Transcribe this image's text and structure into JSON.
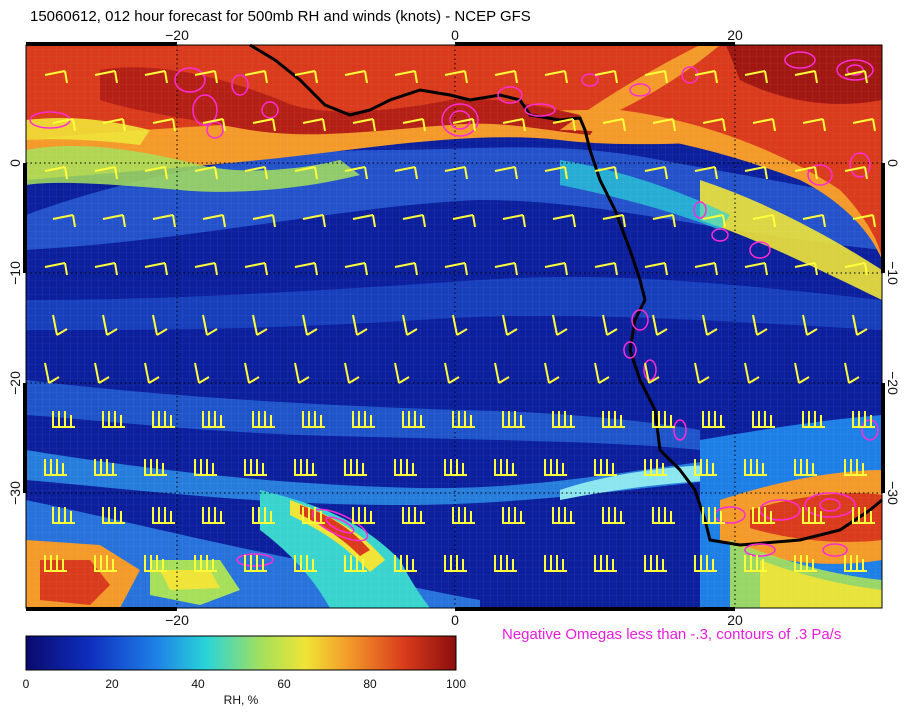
{
  "title": "15060612, 012 hour forecast for 500mb RH and winds (knots) - NCEP GFS",
  "axes": {
    "lon_ticks": [
      "−20",
      "0",
      "20"
    ],
    "lat_ticks": [
      "0",
      "−10",
      "−20",
      "−30"
    ],
    "lon_range": [
      -30,
      30
    ],
    "lat_range": [
      -40,
      10
    ]
  },
  "colorbar": {
    "label": "RH, %",
    "ticks": [
      "0",
      "20",
      "40",
      "60",
      "80",
      "100"
    ],
    "colors": [
      "#0a0a6e",
      "#0f2fbf",
      "#1e7fe6",
      "#2ad4d8",
      "#a6e05a",
      "#f0e436",
      "#f39a2a",
      "#d93b1c",
      "#8c0e0e"
    ]
  },
  "legend_note": "Negative Omegas less than -.3, contours of .3 Pa/s",
  "colors": {
    "wind_barbs": "#ffff3a",
    "omega_contours": "#ff2bd6",
    "coastline": "#000000"
  }
}
